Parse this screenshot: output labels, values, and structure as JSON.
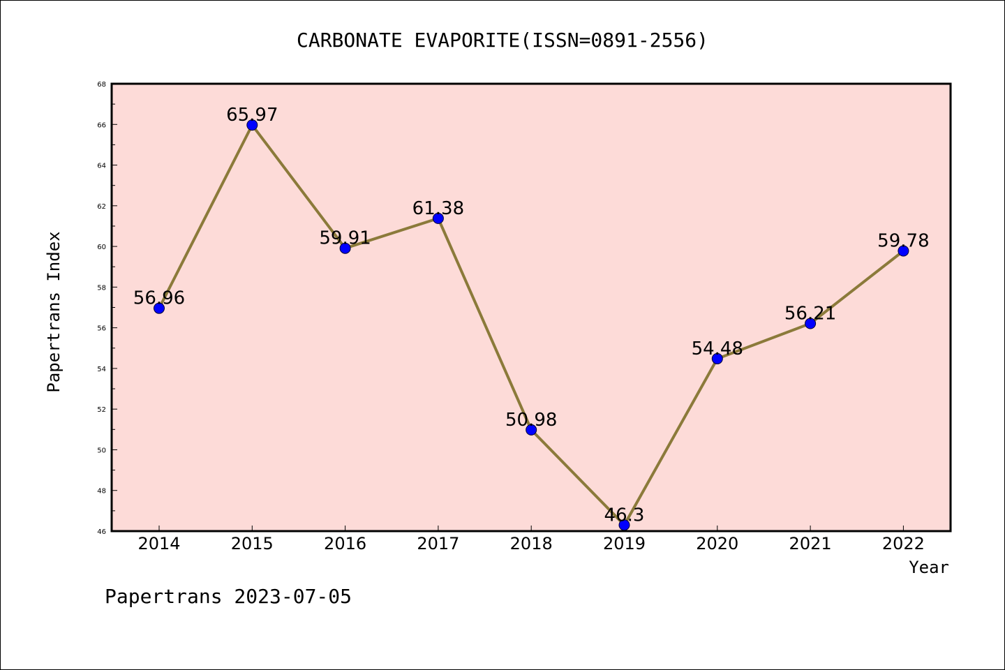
{
  "chart_data": {
    "type": "line",
    "title": "CARBONATE EVAPORITE(ISSN=0891-2556)",
    "xlabel": "Year",
    "ylabel": "Papertrans Index",
    "categories": [
      "2014",
      "2015",
      "2016",
      "2017",
      "2018",
      "2019",
      "2020",
      "2021",
      "2022"
    ],
    "series": [
      {
        "values": [
          56.96,
          65.97,
          59.91,
          61.38,
          50.98,
          46.3,
          54.48,
          56.21,
          59.78
        ],
        "labels": [
          "56.96",
          "65.97",
          "59.91",
          "61.38",
          "50.98",
          "46.3",
          "54.48",
          "56.21",
          "59.78"
        ]
      }
    ],
    "ylim": [
      46,
      68
    ],
    "yticks": [
      "46",
      "48",
      "50",
      "52",
      "54",
      "56",
      "58",
      "60",
      "62",
      "64",
      "66",
      "68"
    ],
    "grid": false,
    "plot_background": "#fddbd8",
    "line_color": "#8b7a3a",
    "marker_color": "#0000ff"
  },
  "footer": {
    "text": "Papertrans 2023-07-05"
  }
}
